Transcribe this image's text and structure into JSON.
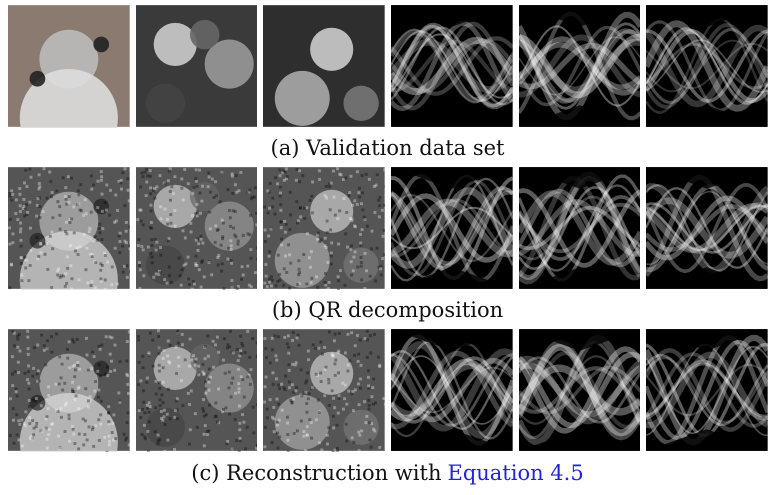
{
  "figure": {
    "rows": [
      {
        "caption": "(a) Validation data set"
      },
      {
        "caption": "(b) QR decomposition"
      },
      {
        "caption": "(c) Reconstruction with",
        "link": "Equation 4.5"
      }
    ]
  }
}
